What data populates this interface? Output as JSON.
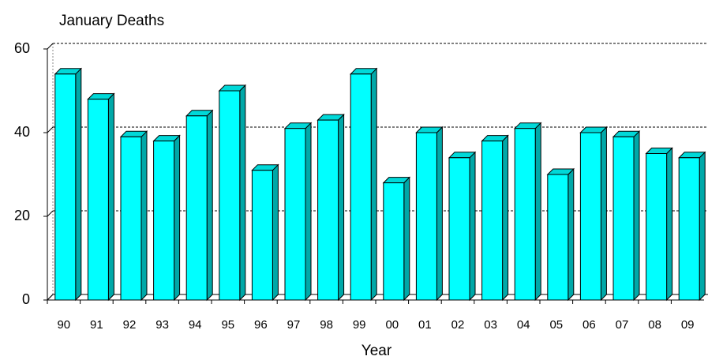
{
  "chart_data": {
    "type": "bar3d",
    "title": "January Deaths",
    "x_label": "Year",
    "categories": [
      "90",
      "91",
      "92",
      "93",
      "94",
      "95",
      "96",
      "97",
      "98",
      "99",
      "00",
      "01",
      "02",
      "03",
      "04",
      "05",
      "06",
      "07",
      "08",
      "09"
    ],
    "values": [
      54,
      48,
      39,
      38,
      44,
      50,
      31,
      41,
      43,
      54,
      28,
      40,
      34,
      38,
      41,
      30,
      40,
      39,
      35,
      34
    ],
    "color": "#00ffff",
    "ylim": [
      0,
      60
    ],
    "yticks": [
      0,
      20,
      40,
      60
    ],
    "grid": true
  }
}
